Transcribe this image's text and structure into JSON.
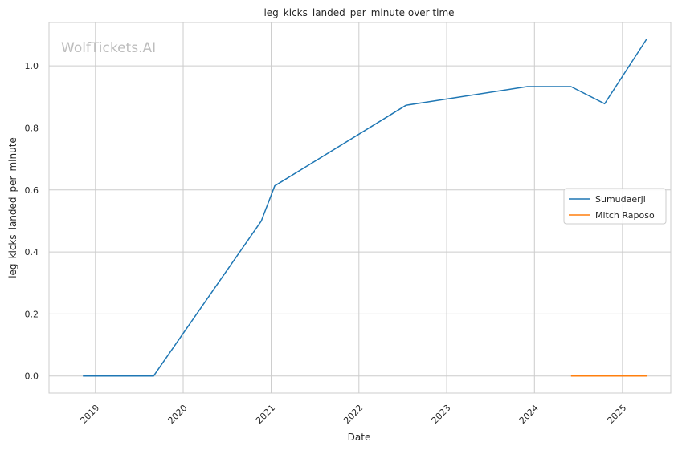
{
  "watermark": "WolfTickets.AI",
  "chart_data": {
    "type": "line",
    "title": "leg_kicks_landed_per_minute over time",
    "xlabel": "Date",
    "ylabel": "leg_kicks_landed_per_minute",
    "x_axis_type": "date",
    "xlim": [
      "2018-06-22",
      "2025-07-21"
    ],
    "ylim": [
      -0.055,
      1.14
    ],
    "x_ticks": [
      "2019-01-01",
      "2020-01-01",
      "2021-01-01",
      "2022-01-01",
      "2023-01-01",
      "2024-01-01",
      "2025-01-01"
    ],
    "x_tick_labels": [
      "2019",
      "2020",
      "2021",
      "2022",
      "2023",
      "2024",
      "2025"
    ],
    "y_ticks": [
      0.0,
      0.2,
      0.4,
      0.6,
      0.8,
      1.0
    ],
    "y_tick_labels": [
      "0.0",
      "0.2",
      "0.4",
      "0.6",
      "0.8",
      "1.0"
    ],
    "grid": true,
    "legend_position": "center-right",
    "series": [
      {
        "name": "Sumudaerji",
        "color": "#1f77b4",
        "x": [
          "2018-11-10",
          "2019-08-31",
          "2020-11-21",
          "2021-01-16",
          "2022-07-16",
          "2023-12-02",
          "2024-06-01",
          "2024-10-19",
          "2025-04-12"
        ],
        "y": [
          0.0,
          0.0,
          0.5,
          0.613,
          0.873,
          0.933,
          0.933,
          0.878,
          1.087
        ]
      },
      {
        "name": "Mitch Raposo",
        "color": "#ff7f0e",
        "x": [
          "2024-06-01",
          "2025-04-12"
        ],
        "y": [
          0.0,
          0.0
        ]
      }
    ]
  }
}
